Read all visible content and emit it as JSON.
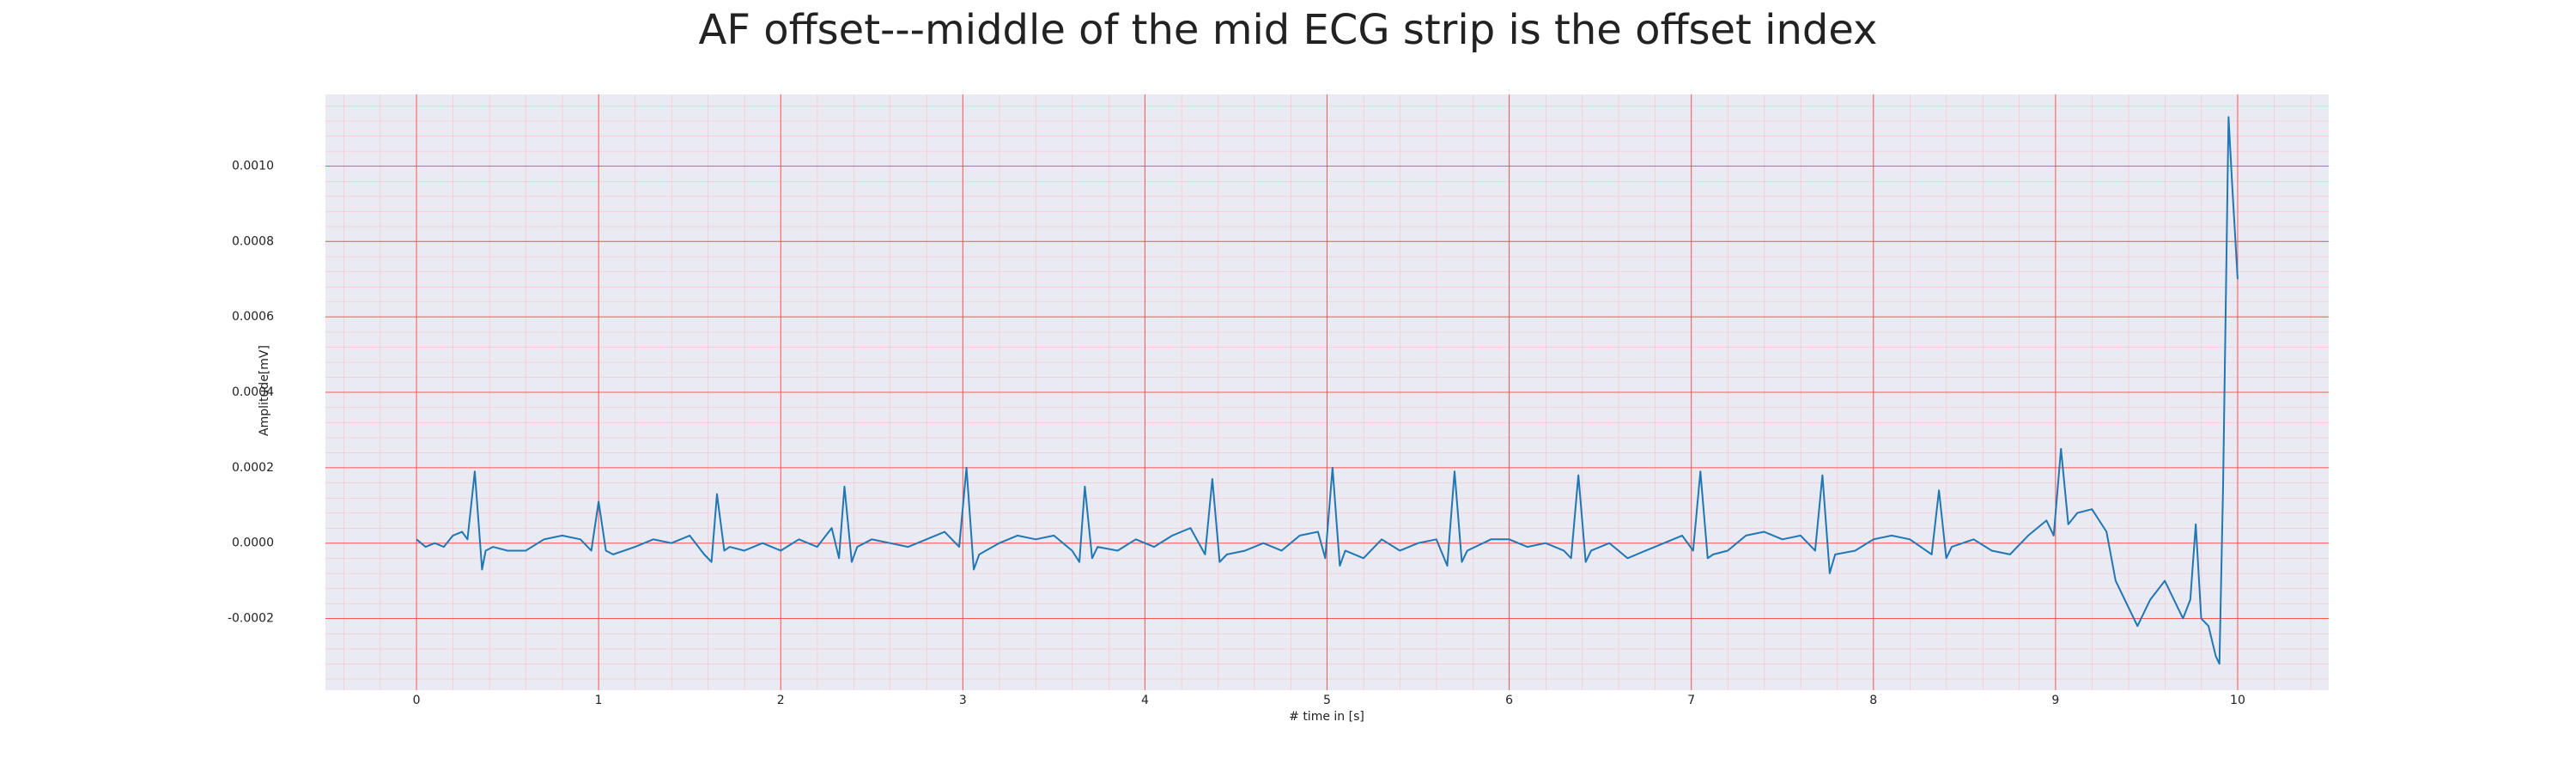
{
  "chart_data": {
    "type": "line",
    "title": "AF offset---middle of the mid ECG strip is the offset index",
    "xlabel": "# time in [s]",
    "ylabel": "Amplitude[mV]",
    "xlim": [
      -0.5,
      10.5
    ],
    "xticks": [
      0,
      1,
      2,
      3,
      4,
      5,
      6,
      7,
      8,
      9,
      10
    ],
    "ylim": [
      -0.00039,
      0.00119
    ],
    "yticks": [
      {
        "value": -0.0002,
        "label": "-0.0002"
      },
      {
        "value": 0,
        "label": "0.0000"
      },
      {
        "value": 0.0002,
        "label": "0.0002"
      },
      {
        "value": 0.0004,
        "label": "0.0004"
      },
      {
        "value": 0.0006,
        "label": "0.0006"
      },
      {
        "value": 0.0008,
        "label": "0.0008"
      },
      {
        "value": 0.001,
        "label": "0.0010"
      }
    ],
    "grid": true,
    "grid_color": "#ff5555",
    "background": "#eaeaf2",
    "x": [
      0,
      0.05,
      0.1,
      0.15,
      0.2,
      0.25,
      0.28,
      0.32,
      0.36,
      0.38,
      0.42,
      0.5,
      0.6,
      0.7,
      0.8,
      0.9,
      0.96,
      1.0,
      1.04,
      1.08,
      1.2,
      1.3,
      1.4,
      1.5,
      1.58,
      1.62,
      1.65,
      1.69,
      1.72,
      1.8,
      1.9,
      2.0,
      2.1,
      2.2,
      2.28,
      2.32,
      2.35,
      2.39,
      2.42,
      2.5,
      2.6,
      2.7,
      2.8,
      2.9,
      2.98,
      3.02,
      3.06,
      3.09,
      3.2,
      3.3,
      3.4,
      3.5,
      3.6,
      3.64,
      3.67,
      3.71,
      3.74,
      3.85,
      3.95,
      4.05,
      4.15,
      4.25,
      4.33,
      4.37,
      4.41,
      4.45,
      4.55,
      4.65,
      4.75,
      4.85,
      4.95,
      4.99,
      5.03,
      5.07,
      5.1,
      5.2,
      5.3,
      5.4,
      5.5,
      5.6,
      5.66,
      5.7,
      5.74,
      5.77,
      5.9,
      6.0,
      6.1,
      6.2,
      6.3,
      6.34,
      6.38,
      6.42,
      6.45,
      6.55,
      6.65,
      6.75,
      6.85,
      6.95,
      7.01,
      7.05,
      7.09,
      7.12,
      7.2,
      7.3,
      7.4,
      7.5,
      7.6,
      7.68,
      7.72,
      7.76,
      7.79,
      7.9,
      8.0,
      8.1,
      8.2,
      8.32,
      8.36,
      8.4,
      8.43,
      8.55,
      8.65,
      8.75,
      8.85,
      8.95,
      8.99,
      9.03,
      9.07,
      9.12,
      9.2,
      9.28,
      9.33,
      9.38,
      9.45,
      9.52,
      9.6,
      9.66,
      9.7,
      9.74,
      9.77,
      9.8,
      9.84,
      9.88,
      9.9,
      9.92,
      9.95,
      9.97,
      10.0
    ],
    "series": [
      {
        "color": "#1f77b4",
        "values": [
          1e-05,
          -1e-05,
          0,
          -1e-05,
          2e-05,
          3e-05,
          1e-05,
          0.00019,
          -7e-05,
          -2e-05,
          -1e-05,
          -2e-05,
          -2e-05,
          1e-05,
          2e-05,
          1e-05,
          -2e-05,
          0.00011,
          -2e-05,
          -3e-05,
          -1e-05,
          1e-05,
          0,
          2e-05,
          -3e-05,
          -5e-05,
          0.00013,
          -2e-05,
          -1e-05,
          -2e-05,
          0,
          -2e-05,
          1e-05,
          -1e-05,
          4e-05,
          -4e-05,
          0.00015,
          -5e-05,
          -1e-05,
          1e-05,
          0,
          -1e-05,
          1e-05,
          3e-05,
          -1e-05,
          0.0002,
          -7e-05,
          -3e-05,
          0,
          2e-05,
          1e-05,
          2e-05,
          -2e-05,
          -5e-05,
          0.00015,
          -4e-05,
          -1e-05,
          -2e-05,
          1e-05,
          -1e-05,
          2e-05,
          4e-05,
          -3e-05,
          0.00017,
          -5e-05,
          -3e-05,
          -2e-05,
          0,
          -2e-05,
          2e-05,
          3e-05,
          -4e-05,
          0.0002,
          -6e-05,
          -2e-05,
          -4e-05,
          1e-05,
          -2e-05,
          0,
          1e-05,
          -6e-05,
          0.00019,
          -5e-05,
          -2e-05,
          1e-05,
          1e-05,
          -1e-05,
          0,
          -2e-05,
          -4e-05,
          0.00018,
          -5e-05,
          -2e-05,
          0,
          -4e-05,
          -2e-05,
          0,
          2e-05,
          -2e-05,
          0.00019,
          -4e-05,
          -3e-05,
          -2e-05,
          2e-05,
          3e-05,
          1e-05,
          2e-05,
          -2e-05,
          0.00018,
          -8e-05,
          -3e-05,
          -2e-05,
          1e-05,
          2e-05,
          1e-05,
          -3e-05,
          0.00014,
          -4e-05,
          -1e-05,
          1e-05,
          -2e-05,
          -3e-05,
          2e-05,
          6e-05,
          2e-05,
          0.00025,
          5e-05,
          8e-05,
          9e-05,
          3e-05,
          -0.0001,
          -0.00015,
          -0.00022,
          -0.00015,
          -0.0001,
          -0.00016,
          -0.0002,
          -0.00015,
          5e-05,
          -0.0002,
          -0.00022,
          -0.0003,
          -0.00032,
          0.00015,
          0.00113,
          0.00095,
          0.0007
        ]
      }
    ]
  }
}
